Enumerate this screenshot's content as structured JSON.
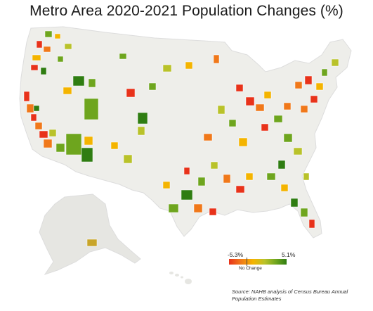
{
  "map": {
    "title": "Metro Area 2020-2021 Population Changes (%)",
    "source_note": "Source: NAHB analysis of Census Bureau Annual Population Estimates"
  },
  "legend": {
    "min_label": "-5.3%",
    "max_label": "5.1%",
    "mid_label": "No Change",
    "colors": {
      "strong_decline": "#e8321a",
      "decline": "#f0781a",
      "slight_decline": "#f4b400",
      "slight_growth": "#b9c22a",
      "growth": "#6ea51e",
      "strong_growth": "#2f7d12"
    }
  },
  "base_colors": {
    "land": "#eeeeea",
    "county_border": "#ffffff",
    "alaska": "#e6e6e2"
  }
}
